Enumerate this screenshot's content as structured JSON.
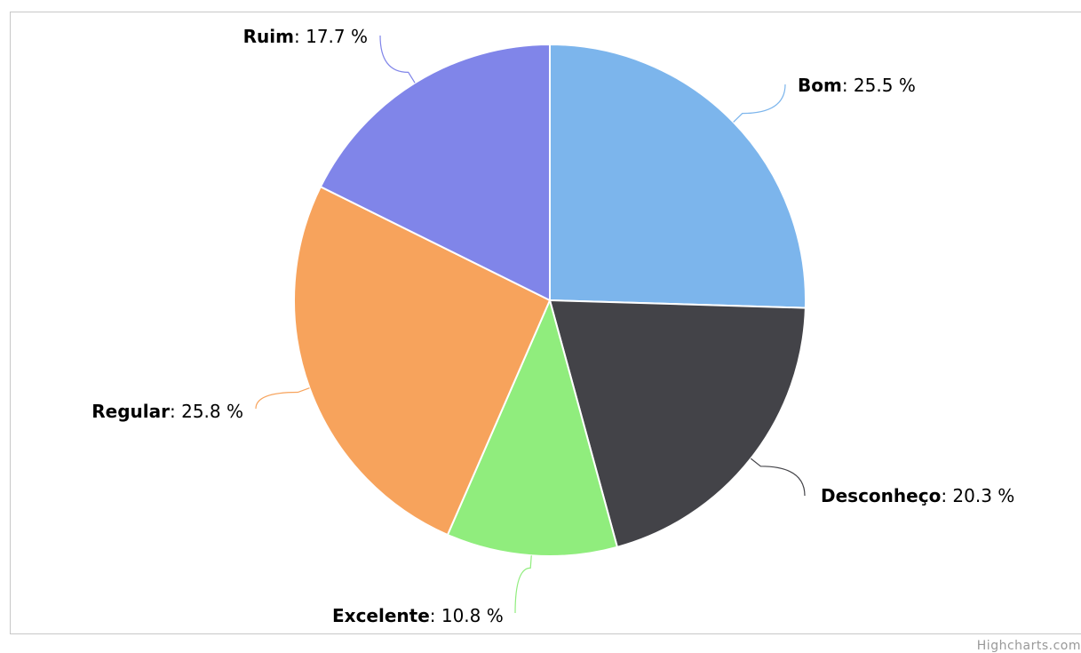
{
  "chart_data": {
    "type": "pie",
    "title": "",
    "label_format": "{name}: {value} %",
    "series": [
      {
        "slices": [
          {
            "name": "Bom",
            "value": 25.5,
            "color": "#7cb5ec"
          },
          {
            "name": "Desconheço",
            "value": 20.3,
            "color": "#434348"
          },
          {
            "name": "Excelente",
            "value": 10.8,
            "color": "#90ed7d"
          },
          {
            "name": "Regular",
            "value": 25.8,
            "color": "#f7a35c"
          },
          {
            "name": "Ruim",
            "value": 17.7,
            "color": "#8085e9"
          }
        ]
      }
    ]
  },
  "credits": {
    "text": "Highcharts.com"
  }
}
